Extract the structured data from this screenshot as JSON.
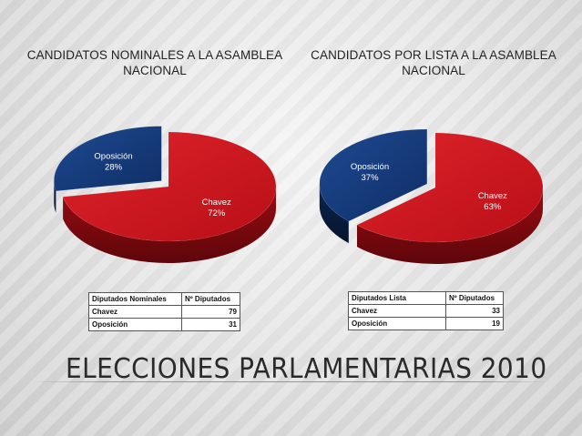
{
  "chart_data": [
    {
      "type": "pie",
      "title": "CANDIDATOS NOMINALES A LA ASAMBLEA NACIONAL",
      "categories": [
        "Chavez",
        "Oposición"
      ],
      "values": [
        72,
        28
      ],
      "labels": [
        "72%",
        "28%"
      ],
      "colors": [
        "#c8101a",
        "#123674"
      ],
      "table": {
        "headers": [
          "Diputados  Nominales",
          "Nº Diputados"
        ],
        "rows": [
          [
            "Chavez",
            "79"
          ],
          [
            "Oposición",
            "31"
          ]
        ]
      }
    },
    {
      "type": "pie",
      "title": "CANDIDATOS POR LISTA A LA ASAMBLEA NACIONAL",
      "categories": [
        "Chavez",
        "Oposición"
      ],
      "values": [
        63,
        37
      ],
      "labels": [
        "63%",
        "37%"
      ],
      "colors": [
        "#c8101a",
        "#123674"
      ],
      "table": {
        "headers": [
          "Diputados  Lista",
          "Nº Diputados"
        ],
        "rows": [
          [
            "Chavez",
            "33"
          ],
          [
            "Oposición",
            "19"
          ]
        ]
      }
    }
  ],
  "main_title": "ELECCIONES PARLAMENTARIAS 2010"
}
